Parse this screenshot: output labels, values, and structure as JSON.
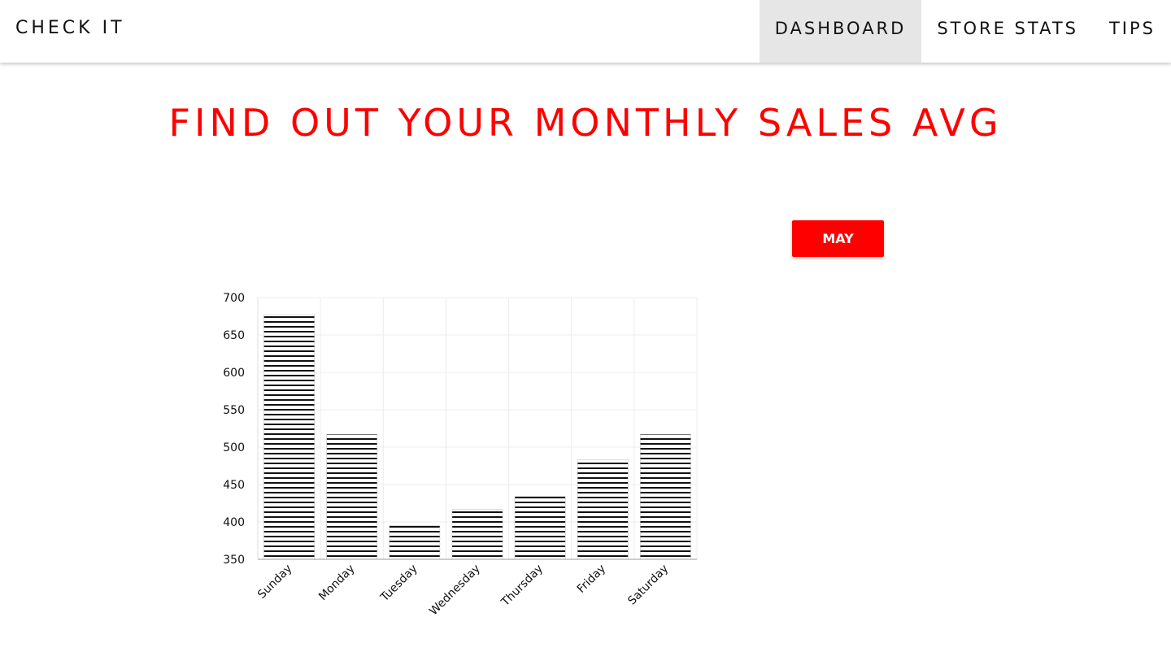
{
  "navbar": {
    "brand": "CHECK IT",
    "links": [
      {
        "label": "DASHBOARD",
        "active": true
      },
      {
        "label": "STORE STATS",
        "active": false
      },
      {
        "label": "TIPS",
        "active": false
      }
    ]
  },
  "page": {
    "title": "FIND OUT YOUR MONTHLY SALES AVG"
  },
  "month_selector": {
    "label": "MAY"
  },
  "colors": {
    "accent": "#ff0000",
    "active_nav_bg": "#e6e6e6",
    "bar_stripe": "#111111"
  },
  "chart_data": {
    "type": "bar",
    "categories": [
      "Sunday",
      "Monday",
      "Tuesday",
      "Wednesday",
      "Thursday",
      "Friday",
      "Saturday"
    ],
    "values": [
      677,
      517,
      395,
      417,
      434,
      483,
      517
    ],
    "ylim": [
      350,
      700
    ],
    "yticks": [
      350,
      400,
      450,
      500,
      550,
      600,
      650,
      700
    ],
    "grid": true,
    "bar_fill": "horizontal-stripes"
  }
}
